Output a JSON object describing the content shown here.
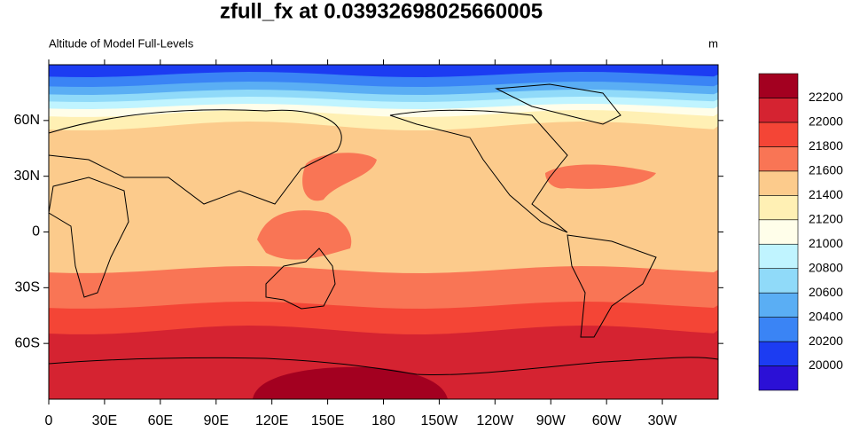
{
  "chart_data": {
    "type": "contour-map",
    "title": "zfull_fx at 0.03932698025660005",
    "left_string": "Altitude of Model Full-Levels",
    "right_string": "m",
    "xlim": [
      0,
      360
    ],
    "xticks": [
      0,
      {
        "value": 30,
        "label": "30E"
      },
      {
        "value": 60,
        "label": "60E"
      },
      {
        "value": 90,
        "label": "90E"
      },
      {
        "value": 120,
        "label": "120E"
      },
      {
        "value": 150,
        "label": "150E"
      },
      {
        "value": 180,
        "label": "180"
      },
      {
        "value": 210,
        "label": "150W"
      },
      {
        "value": 240,
        "label": "120W"
      },
      {
        "value": 270,
        "label": "90W"
      },
      {
        "value": 300,
        "label": "60W"
      },
      {
        "value": 330,
        "label": "30W"
      }
    ],
    "ylim": [
      -90,
      90
    ],
    "yticks": [
      {
        "value": 60,
        "label": "60N"
      },
      {
        "value": 30,
        "label": "30N"
      },
      0,
      {
        "value": -30,
        "label": "30S"
      },
      {
        "value": -60,
        "label": "60S"
      }
    ],
    "levels": [
      20000,
      20200,
      20400,
      20600,
      20800,
      21000,
      21200,
      21400,
      21600,
      21800,
      22000,
      22200
    ],
    "colors": [
      "#2b10d6",
      "#1c3cf2",
      "#3a84f5",
      "#5aaef4",
      "#90daf9",
      "#c0f4ff",
      "#fffeea",
      "#fff0b4",
      "#fccb8c",
      "#f97555",
      "#f44536",
      "#d52331",
      "#a30020"
    ]
  }
}
